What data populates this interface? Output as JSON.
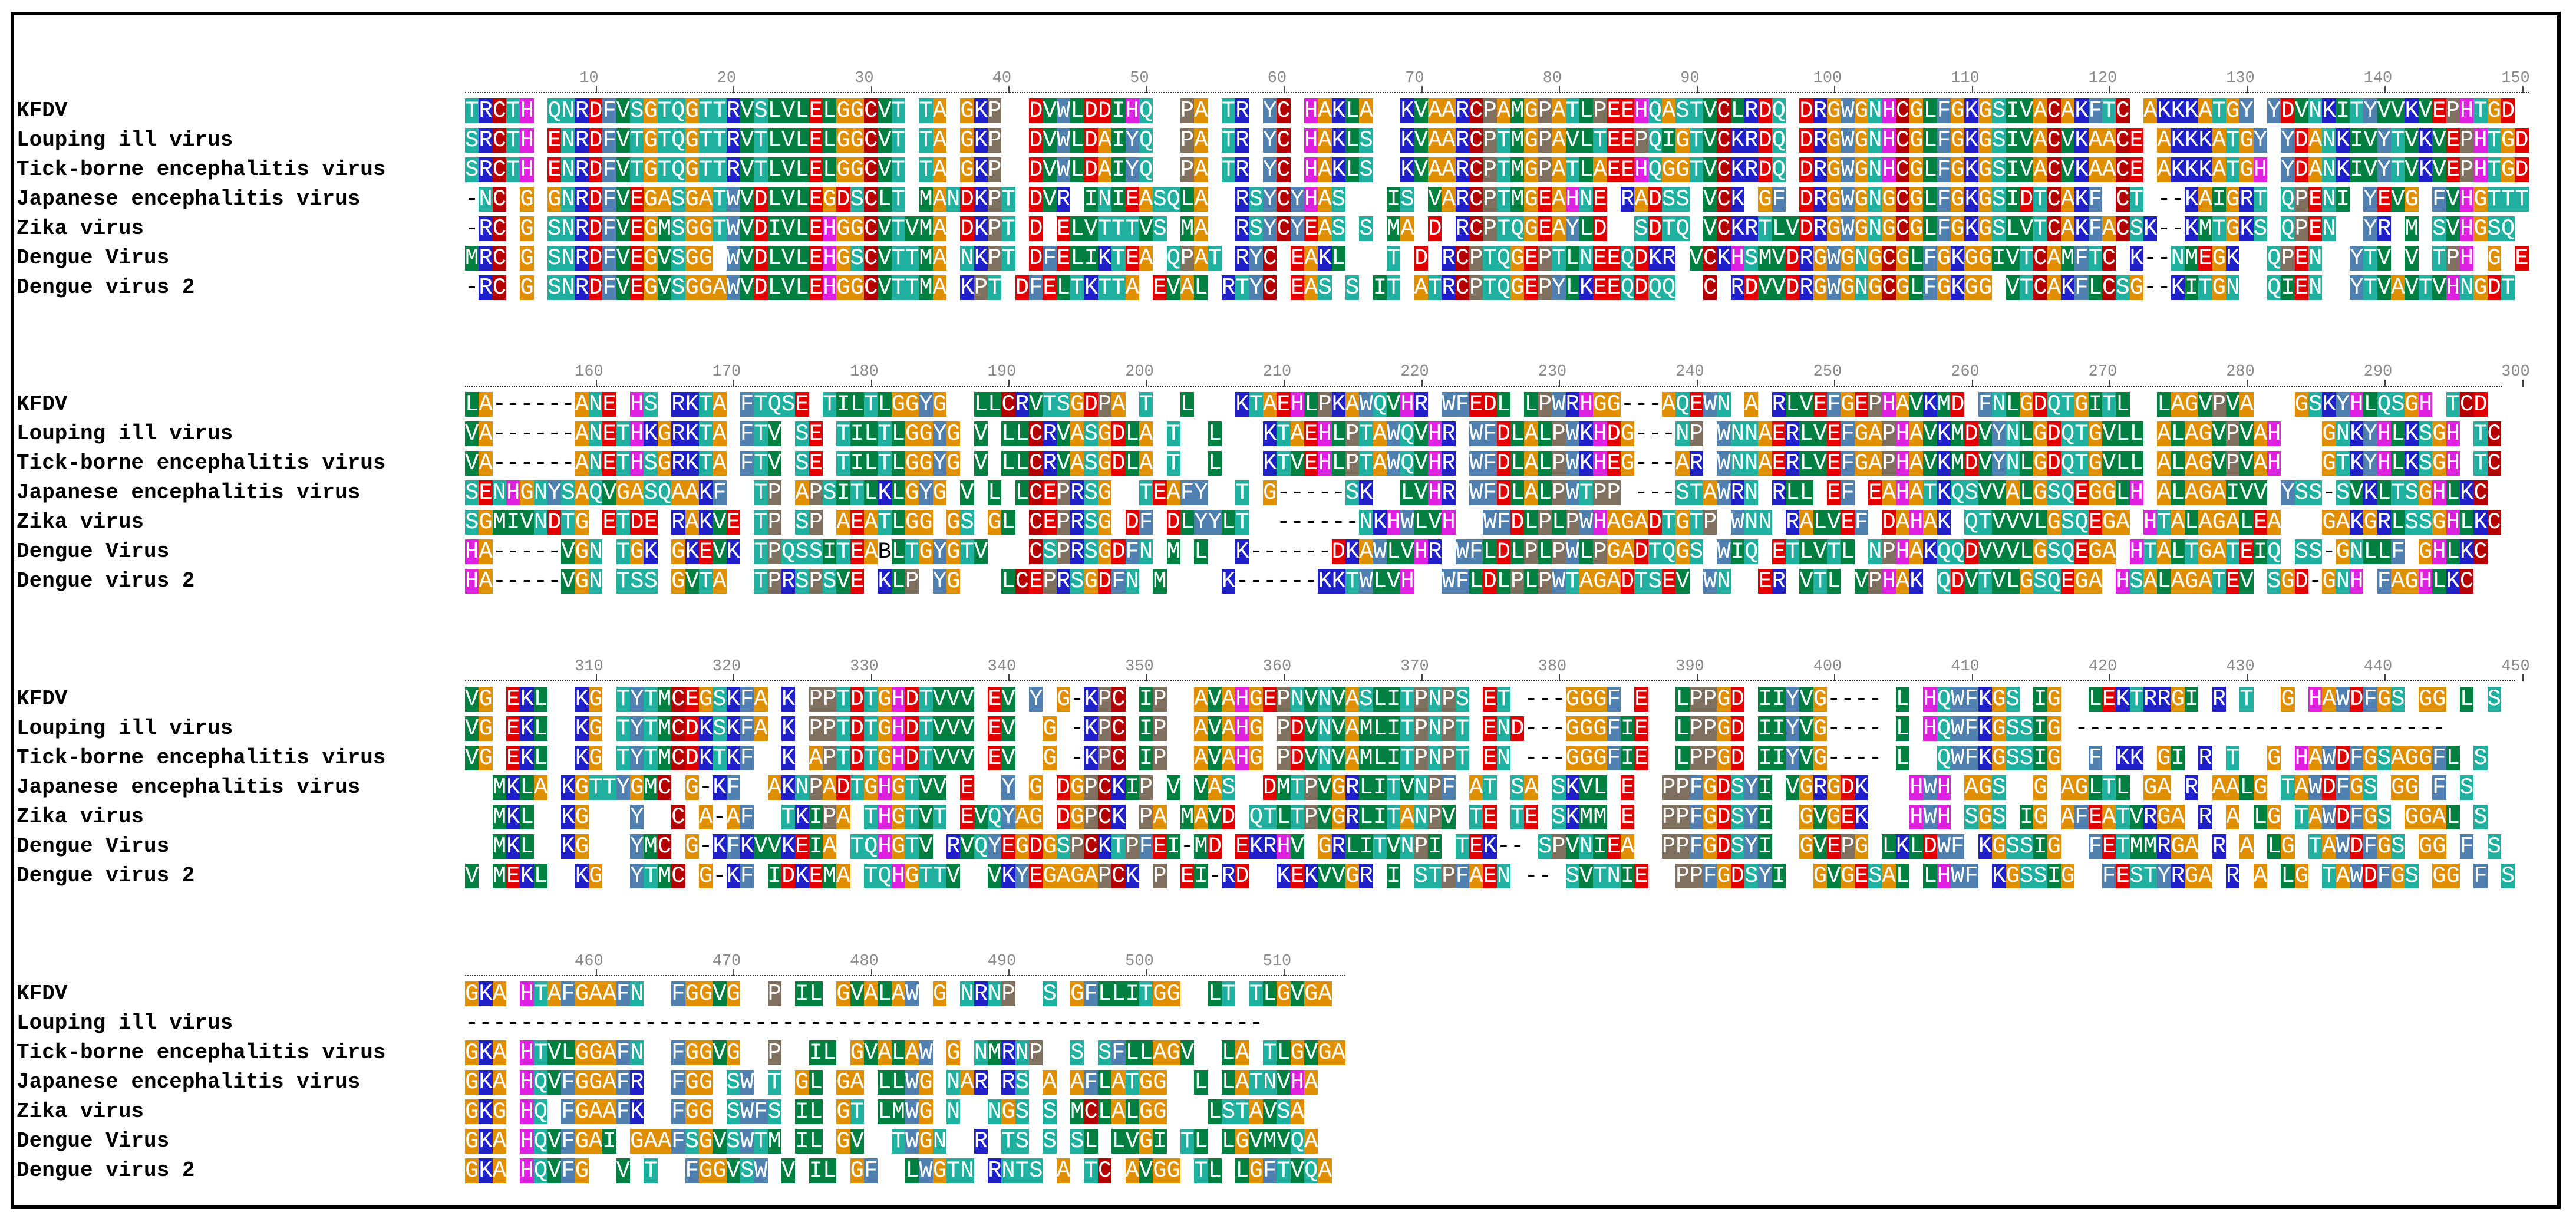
{
  "species": [
    "KFDV",
    "Louping ill virus",
    "Tick-borne encephalitis virus",
    "Japanese encephalitis virus",
    "Zika virus",
    "Dengue Virus",
    "Dengue virus 2"
  ],
  "blocks": [
    {
      "ticks": [
        "10",
        "20",
        "30",
        "40",
        "50",
        "60",
        "70",
        "80",
        "90",
        "100",
        "110",
        "120",
        "130",
        "140",
        "150"
      ],
      "rows": [
        "TRCTH QNRDFVSGTQGTTRVSLVLELGGCVT TA GKP  DVWLDDIHQ  PA TR YC HAKLA  KVAARCPAMGPATLPEEHQASTVCLRDQ DRGWGNHCGLFGKGSIVACAKFTC AKKKATGY YDVNKITYVVKVEPHTGD",
        "SRCTH ENRDFVTGTQGTTRVTLVLELGGCVT TA GKP  DVWLDAIYQ  PA TR YC HAKLS  KVAARCPTMGPAVLTEEPQIGTVCKRDQ DRGWGNHCGLFGKGSIVACVKAACE AKKKATGY YDANKIVYTVKVEPHTGD",
        "SRCTH ENRDFVTGTQGTTRVTLVLELGGCVT TA GKP  DVWLDAIYQ  PA TR YC HAKLS  KVAARCPTMGPATLAEEHQGGTVCKRDQ DRGWGNHCGLFGKGSIVACVKAACE AKKKATGH YDANKIVYTVKVEPHTGD",
        "-NC G GNRDFVEGASGATWVDLVLEGDSCLT MANDKPT DVR INIEASQLA  RSYCYHAS   IS VARCPTMGEAHNE RADSS VCK GF DRGWGNGCGLFGKGSIDTCAKF CT --KAIGRT QPENI YEVG FVHGTTT",
        "-RC G SNRDFVEGMSGGTWVDIVLEHGGCVTVMA DKPT D ELVTTTVS MA  RSYCYEAS S MA D RCPTQGEAYLD  SDTQ VCKRTLVDRGWGNGCGLFGKGSLVTCAKFACSK--KMTGKS QPEN  YR M SVHGSQ",
        "MRC G SNRDFVEGVSGG WVDLVLEHGSCVTTMA NKPT DFELIKTEA QPAT RYC EAKL   T D RCPTQGEPTLNEEQDKR VCKHSMVDRGWGNGCGLFGKGGIVTCAMFTC K--NMEGK  QPEN  YTV V TPH G E",
        "-RC G SNRDFVEGVSGGAWVDLVLEHGGCVTTMA KPT DFELTKTTA EVAL RTYC EAS S IT ATRCPTQGEPYLKEEQDQQ  C RDVVDRGWGNGCGLFGKGG VTCAKFLCSG--KITGN  QIEN  YTVAVTVHNGDT"
      ]
    },
    {
      "ticks": [
        "160",
        "170",
        "180",
        "190",
        "200",
        "210",
        "220",
        "230",
        "240",
        "250",
        "260",
        "270",
        "280",
        "290",
        "300"
      ],
      "rows": [
        "LA------ANE HS RKTA FTQSE TILTLGGYG  LLCRVTSGDPA T  L   KTAEHLPKAWQVHR WFEDL LPWRHGG---AQEWN A RLVEFGEPHAVKMD FNLGDQTGITL  LAGVPVA   GSKYHLQSGH TCD",
        "VA------ANETHKGRKTA FTV SE TILTLGGYG V LLCRVASGDLA T  L   KTAEHLPTAWQVHR WFDLALPWKHDG---NP WNNAERLVEFGAPHAVKMDVYNLGDQTGVLL ALAGVPVAH   GNKYHLKSGH TC",
        "VA------ANETHSGRKTA FTV SE TILTLGGYG V LLCRVASGDLA T  L   KTVEHLPTAWQVHR WFDLALPWKHEG---AR WNNAERLVEFGAPHAVKMDVYNLGDQTGVLL ALAGVPVAH   GTKYHLKSGH TC",
        "SENHGNYSAQVGASQAAKF  TP APSITLKLGYG V L LCEPRSG  TEAFY  T G-----SK  LVHR WFDLALPWTPP ---STAWRN RLL EF EAHATKQSVVALGSQEGGLH ALAGAIVV YSS-SVKLTSGHLKC",
        "SGMIVNDTG ETDE RAKVE TP SP AEATLGG GS GL CEPRSG DF DLYYLT  ------NKHWLVH  WFDLPLPWHAGADTGTP WNN RALVEF DAHAK QTVVVLGSQEGA HTALAGALEA   GAKGRLSSGHLKC",
        "HA-----VGN TGK GKEVK TPQSSITEABLTGYGTV   CSPRSGDFN M L  K------DKAWLVHR WFLDLPLPWLPGADTQGS WIQ ETLVTL NPHAKQQDVVVLGSQEGA HTALTGATEIQ SS-GNLLF GHLKC",
        "HA-----VGN TSS GVTA  TPRSPSVE KLP YG   LCEPRSGDFN M    K------KKTWLVH  WFLDLPLPWTAGADTSEV WN  ER VTL VPHAK QDVTVLGSQEGA HSALAGATEV SGD-GNH FAGHLKC"
      ]
    },
    {
      "ticks": [
        "310",
        "320",
        "330",
        "340",
        "350",
        "360",
        "370",
        "380",
        "390",
        "400",
        "410",
        "420",
        "430",
        "440",
        "450"
      ],
      "rows": [
        "VG EKL  KG TYTMCEGSKFA K PPTDTGHDTVVV EV Y G-KPC IP  AVAHGEPNVNVASLITPNPS ET ---GGGF E  LPPGD IIYVG---- L HQWFKGS IG  LEKTRRGI R T  G HAWDFGS GG L S",
        "VG EKL  KG TYTMCDKSKFA K PPTDTGHDTVVV EV  G -KPC IP  AVAHG PDVNVAMLITPNPT END---GGGFIE  LPPGD IIYVG---- L HQWFKGSSIG ---------------------------",
        "VG EKL  KG TYTMCDKTKF  K APTDTGHDTVVV EV  G -KPC IP  AVAHG PDVNVAMLITPNPT EN ---GGGFIE  LPPGD IIYVG---- L  QWFKGSSIG  F KK GI R T  G HAWDFGSAGGFL S",
        "  MKLA KGTTYGMC G-KF  AKNPADTGHGTVV E  Y G DGPCKIP V VAS  DMTPVGRLITVNPF AT SA SKVL E  PPFGDSYI VGRGDK   HWH AGS  G AGLTL GA R AALG TAWDFGS GG F S",
        "  MKL  KG   Y  C A-AF  TKIPA THGTVT EVQYAG DGPCK PA MAVD QTLTPVGRLITANPV TE TE SKMM E  PPFGDSYI  GVGEK   HWH SGS IG AFEATVRGA R A LG TAWDFGS GGAL S",
        "  MKL  KG   YMC G-KFKVVKEIA TQHGTV RVQYEGDGSPCKTPFEI-MD EKRHV GRLITVNPI TEK-- SPVNIEA  PPFGDSYI  GVEPG LKLDWF KGSSIG  FETMMRGA R A LG TAWDFGS GG F S",
        "V MEKL  KG  YTMC G-KF IDKEMA TQHGTTV  VKYEGAGAPCK P EI-RD  KEKVVGR I STPFAEN -- SVTNIE  PPFGDSYI  GVGESAL LHWF KGSSIG  FESTYRGA R A LG TAWDFGS GG F S"
      ]
    },
    {
      "ticks": [
        "460",
        "470",
        "480",
        "490",
        "500",
        "510"
      ],
      "rows": [
        "GKA HTAFGAAFN  FGGVG  P IL GVALAW G NRNP  S GFLLITGG  LT TLGVGA",
        "----------------------------------------------------------",
        "GKA HTVLGGAFN  FGGVG  P  IL GVALAW G NMRNP  S SFLLAGV  LA TLGVGA",
        "GKA HQVFGGAFR  FGG SW T GL GA LLWG NAR RS A AFLATGG  L LATNVHA",
        "GKG HQ FGAAFK  FGG SWFS IL GT LMWG N  NGS S MCLALGG   LSTAVSA",
        "GKA HQVFGAI GAAFSGVSWTM IL GV  TWGN  R TS S SL LVGI TL LGVMVQA",
        "GKA HQVFG  V T  FGGVSW V IL GF  LWGTN RNTS A TC AVGG TL LGFTVQA"
      ]
    }
  ],
  "colors": {
    "border": "#000000",
    "ruler_text": "#8a8a8a",
    "residue_palette": {
      "G": "#e08f00",
      "A": "#e08f00",
      "C": "#b40000",
      "D": "#e00000",
      "E": "#e00000",
      "K": "#2020c8",
      "R": "#2020c8",
      "H": "#e020e0",
      "S": "#20b0a0",
      "T": "#20b0a0",
      "N": "#20b0a0",
      "Q": "#20b0a0",
      "V": "#008040",
      "I": "#008040",
      "L": "#008040",
      "M": "#008040",
      "F": "#5080b0",
      "Y": "#5080b0",
      "W": "#5080b0",
      "P": "#807060"
    }
  }
}
